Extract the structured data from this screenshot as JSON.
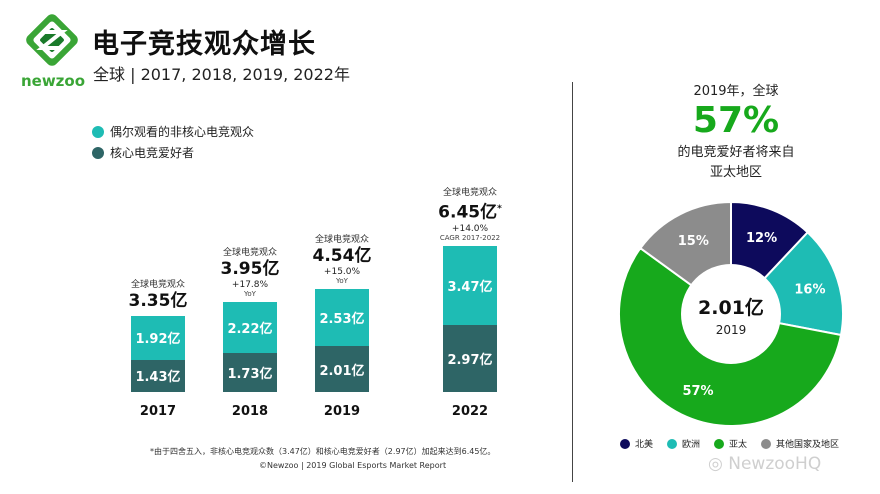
{
  "brand": {
    "logo_text": "newzoo",
    "green": "#3aa536",
    "dark_green": "#1a7a2a"
  },
  "header": {
    "title": "电子竞技观众增长",
    "subtitle": "全球 | 2017, 2018, 2019, 2022年"
  },
  "legend_left": [
    {
      "label": "偶尔观看的非核心电竞观众",
      "color": "#1ebcb4"
    },
    {
      "label": "核心电竞爱好者",
      "color": "#2e6566"
    }
  ],
  "chart_data": [
    {
      "type": "bar",
      "stacked": true,
      "unit": "亿",
      "categories": [
        "2017",
        "2018",
        "2019",
        "2022"
      ],
      "series": [
        {
          "name": "核心电竞爱好者",
          "values": [
            1.43,
            1.73,
            2.01,
            2.97
          ],
          "labels": [
            "1.43亿",
            "1.73亿",
            "2.01亿",
            "2.97亿"
          ],
          "color": "#2e6566"
        },
        {
          "name": "偶尔观看的非核心电竞观众",
          "values": [
            1.92,
            2.22,
            2.53,
            3.47
          ],
          "labels": [
            "1.92亿",
            "2.22亿",
            "2.53亿",
            "3.47亿"
          ],
          "color": "#1ebcb4"
        }
      ],
      "annotations": [
        {
          "label": "全球电竞观众",
          "total": "3.35亿",
          "growth": "",
          "growth_note": ""
        },
        {
          "label": "全球电竞观众",
          "total": "3.95亿",
          "growth": "+17.8%",
          "growth_note": "YoY"
        },
        {
          "label": "全球电竞观众",
          "total": "4.54亿",
          "growth": "+15.0%",
          "growth_note": "YoY"
        },
        {
          "label": "全球电竞观众",
          "total": "6.45亿",
          "total_mark": "*",
          "growth": "+14.0%",
          "growth_note": "CAGR 2017-2022"
        }
      ]
    },
    {
      "type": "pie",
      "donut": true,
      "center_value": "2.01亿",
      "center_sub": "2019",
      "slices": [
        {
          "name": "北美",
          "value": 12,
          "label": "12%",
          "color": "#0d0a5c"
        },
        {
          "name": "欧洲",
          "value": 16,
          "label": "16%",
          "color": "#1ebcb4"
        },
        {
          "name": "亚太",
          "value": 57,
          "label": "57%",
          "color": "#17a91c"
        },
        {
          "name": "其他国家及地区",
          "value": 15,
          "label": "15%",
          "color": "#8c8c8c"
        }
      ]
    }
  ],
  "pie_header": {
    "line1": "2019年，全球",
    "big": "57%",
    "line2": "的电竞爱好者将来自",
    "line3": "亚太地区"
  },
  "footnote": "*由于四舍五入，非核心电竞观众数（3.47亿）和核心电竞爱好者（2.97亿）加起来达到6.45亿。",
  "source": "©Newzoo | 2019 Global Esports Market Report",
  "watermark": "NewzooHQ"
}
